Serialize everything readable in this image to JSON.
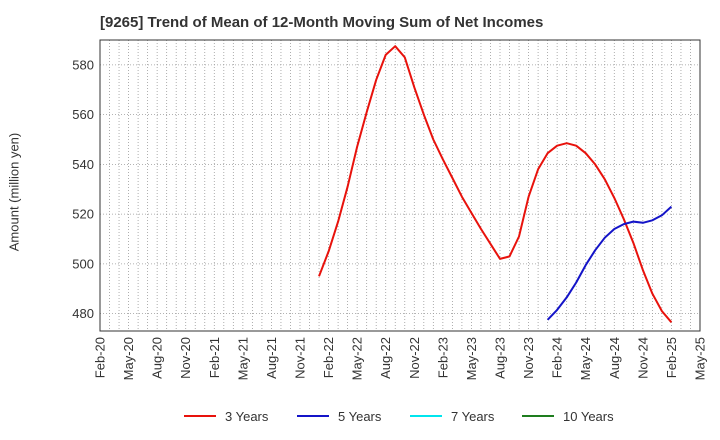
{
  "chart_data": {
    "type": "line",
    "title": "[9265]  Trend of Mean of 12-Month Moving Sum of Net Incomes",
    "xlabel": "",
    "ylabel": "Amount (million yen)",
    "ylim": [
      473,
      590
    ],
    "yticks": [
      480,
      500,
      520,
      540,
      560,
      580
    ],
    "xticks": [
      "Feb-20",
      "May-20",
      "Aug-20",
      "Nov-20",
      "Feb-21",
      "May-21",
      "Aug-21",
      "Nov-21",
      "Feb-22",
      "May-22",
      "Aug-22",
      "Nov-22",
      "Feb-23",
      "May-23",
      "Aug-23",
      "Nov-23",
      "Feb-24",
      "May-24",
      "Aug-24",
      "Nov-24",
      "Feb-25",
      "May-25"
    ],
    "grid": true,
    "legend_position": "bottom",
    "series": [
      {
        "name": "3 Years",
        "color": "#e8120c",
        "x": [
          "Jan-22",
          "Feb-22",
          "Mar-22",
          "Apr-22",
          "May-22",
          "Jun-22",
          "Jul-22",
          "Aug-22",
          "Sep-22",
          "Oct-22",
          "Nov-22",
          "Dec-22",
          "Jan-23",
          "Feb-23",
          "Mar-23",
          "Apr-23",
          "May-23",
          "Jun-23",
          "Jul-23",
          "Aug-23",
          "Sep-23",
          "Oct-23",
          "Nov-23",
          "Dec-23",
          "Jan-24",
          "Feb-24",
          "Mar-24",
          "Apr-24",
          "May-24",
          "Jun-24",
          "Jul-24",
          "Aug-24",
          "Sep-24",
          "Oct-24",
          "Nov-24",
          "Dec-24",
          "Jan-25",
          "Feb-25"
        ],
        "values": [
          495,
          505,
          517,
          531,
          547,
          561,
          574,
          584,
          587.5,
          583,
          571,
          560,
          550,
          542,
          534.5,
          527,
          520.5,
          514,
          508,
          502,
          503,
          511,
          527,
          538,
          544.5,
          547.5,
          548.5,
          547.5,
          544.5,
          540,
          534,
          526.5,
          518,
          508.5,
          497.5,
          488,
          481,
          476.5
        ]
      },
      {
        "name": "5 Years",
        "color": "#1414c8",
        "x": [
          "Jan-24",
          "Feb-24",
          "Mar-24",
          "Apr-24",
          "May-24",
          "Jun-24",
          "Jul-24",
          "Aug-24",
          "Sep-24",
          "Oct-24",
          "Nov-24",
          "Dec-24",
          "Jan-25",
          "Feb-25"
        ],
        "values": [
          477.5,
          481.5,
          486.5,
          492.5,
          499.5,
          505.5,
          510.5,
          514,
          516,
          517,
          516.5,
          517.5,
          519.5,
          523
        ]
      },
      {
        "name": "7 Years",
        "color": "#00e5ee",
        "x": [],
        "values": []
      },
      {
        "name": "10 Years",
        "color": "#1e7d1e",
        "x": [],
        "values": []
      }
    ]
  }
}
